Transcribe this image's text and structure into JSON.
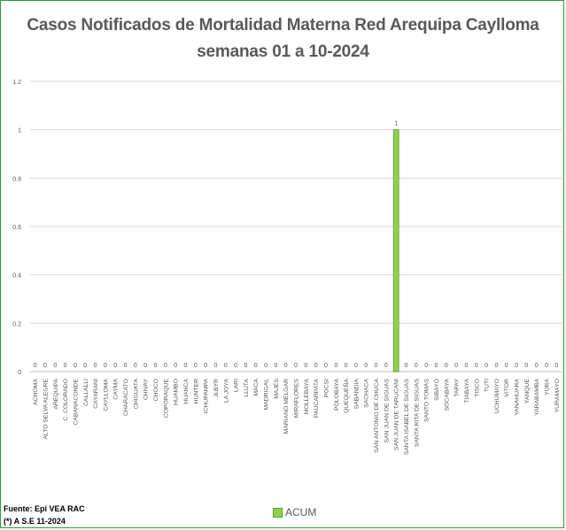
{
  "chart_data": {
    "type": "bar",
    "title": "Casos  Notificados de Mortalidad Materna Red Arequipa Caylloma",
    "subtitle": "semanas 01 a 10-2024",
    "xlabel": "",
    "ylabel": "",
    "ylim": [
      0,
      1.2
    ],
    "yticks": [
      "0",
      "0.2",
      "0.4",
      "0.6",
      "0.8",
      "1",
      "1.2"
    ],
    "grid": true,
    "legend_position": "bottom",
    "categories": [
      "ACHOMA",
      "ALTO SELVA ALEGRE",
      "AREQUIPA",
      "C. COLORADO",
      "CABANACONDE",
      "CALLALLI",
      "CAYARANI",
      "CAYLLOMA",
      "CAYMA",
      "CHARACATO",
      "CHIGUATA",
      "CHIVAY",
      "CHOCO",
      "COPORAQUE",
      "HUAMBO",
      "HUANCA",
      "HUNTER",
      "ICHUPAMPA",
      "JLBYR",
      "LA JOYA",
      "LARI",
      "LLUTA",
      "MACA",
      "MADRIGAL",
      "MAJES",
      "MARIANO MELGAR",
      "MIRAFLORES",
      "MOLLEBAYA",
      "PAUCARPATA",
      "POCSI",
      "POLOBAYA",
      "QUEQUEÑA",
      "SABANDIA",
      "SACHACA",
      "SAN ANTONIO DE CHUCA",
      "SAN JUAN DE SIGUAS",
      "SAN JUAN DE TARUCANI",
      "SANTA ISABEL DE SIGUAS",
      "SANTA RITA DE SIGUAS",
      "SANTO TOMAS",
      "SIBAYO",
      "SOCABAYA",
      "TAPAY",
      "TIABAYA",
      "TISCO",
      "TUTI",
      "UCHUMAYO",
      "VITOR",
      "YANAHUARA",
      "YANQUE",
      "YARABAMBA",
      "YURA",
      "YURAMAYO"
    ],
    "series": [
      {
        "name": "ACUM",
        "color": "#92d050",
        "values": [
          0,
          0,
          0,
          0,
          0,
          0,
          0,
          0,
          0,
          0,
          0,
          0,
          0,
          0,
          0,
          0,
          0,
          0,
          0,
          0,
          0,
          0,
          0,
          0,
          0,
          0,
          0,
          0,
          0,
          0,
          0,
          0,
          0,
          0,
          0,
          0,
          1,
          0,
          0,
          0,
          0,
          0,
          0,
          0,
          0,
          0,
          0,
          0,
          0,
          0,
          0,
          0,
          0
        ]
      }
    ]
  },
  "legend": {
    "label": "ACUM"
  },
  "source": {
    "line1": "Fuente: Epi VEA RAC",
    "line2": "(*) A S.E 11-2024"
  },
  "colors": {
    "bar": "#92d050",
    "bar_edge": "#5e9e2a",
    "text": "#595959",
    "grid": "#d9d9d9",
    "frame": "#2e9c3e"
  }
}
